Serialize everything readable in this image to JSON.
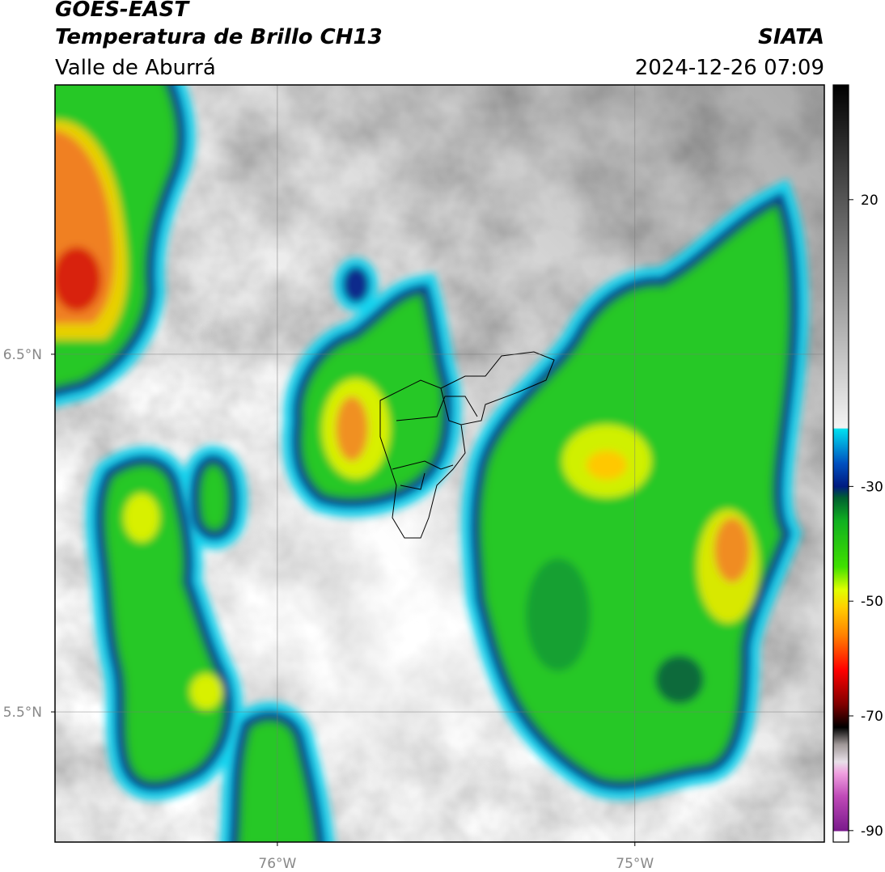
{
  "header": {
    "title": "GOES-EAST",
    "subtitle": "Temperatura de Brillo CH13",
    "region": "Valle de Aburrá",
    "source": "SIATA",
    "timestamp": "2024-12-26 07:09"
  },
  "map": {
    "lat_range": [
      5.136,
      7.253
    ],
    "lon_range": [
      -76.622,
      -74.47
    ],
    "lat_ticks": [
      {
        "value": 6.5,
        "label": "6.5°N"
      },
      {
        "value": 5.5,
        "label": "5.5°N"
      }
    ],
    "lon_ticks": [
      {
        "value": -76,
        "label": "76°W"
      },
      {
        "value": -75,
        "label": "75°W"
      }
    ],
    "grid": true
  },
  "colorbar": {
    "clim": [
      -92,
      40
    ],
    "ticks": [
      -90,
      -70,
      -50,
      -30,
      20
    ],
    "stops": [
      {
        "value": -92,
        "color": "#ffffff"
      },
      {
        "value": -90.2,
        "color": "#ffffff"
      },
      {
        "value": -90,
        "color": "#7a1a8c"
      },
      {
        "value": -84,
        "color": "#c04ab8"
      },
      {
        "value": -80,
        "color": "#f0a0e0"
      },
      {
        "value": -78,
        "color": "#e8e0e8"
      },
      {
        "value": -75,
        "color": "#a09898"
      },
      {
        "value": -72,
        "color": "#000000"
      },
      {
        "value": -68,
        "color": "#800000"
      },
      {
        "value": -62,
        "color": "#ff0000"
      },
      {
        "value": -56,
        "color": "#ff8000"
      },
      {
        "value": -51,
        "color": "#ffd000"
      },
      {
        "value": -48,
        "color": "#e0ff00"
      },
      {
        "value": -44,
        "color": "#40e000"
      },
      {
        "value": -36,
        "color": "#10b020"
      },
      {
        "value": -32,
        "color": "#006030"
      },
      {
        "value": -30,
        "color": "#001a80"
      },
      {
        "value": -26,
        "color": "#0050c0"
      },
      {
        "value": -22,
        "color": "#00b0e0"
      },
      {
        "value": -20,
        "color": "#00e0f0"
      },
      {
        "value": -19.8,
        "color": "#f4f4f4"
      },
      {
        "value": 10,
        "color": "#808080"
      },
      {
        "value": 40,
        "color": "#000000"
      }
    ]
  }
}
